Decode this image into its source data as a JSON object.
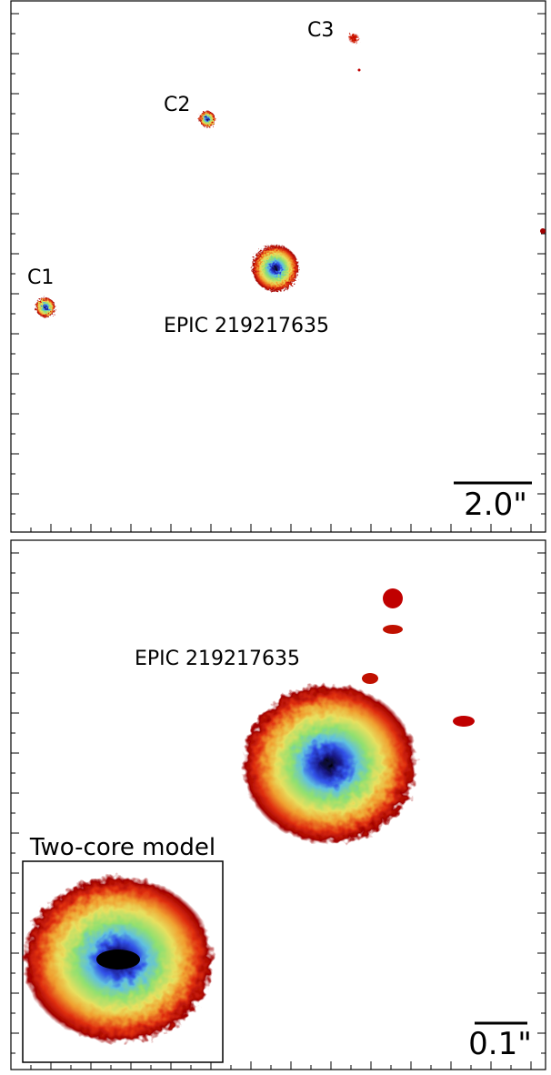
{
  "top_panel": {
    "labels": {
      "c1": "C1",
      "c2": "C2",
      "c3": "C3",
      "target": "EPIC 219217635"
    },
    "scale_bar": "2.0\""
  },
  "bottom_panel": {
    "target": "EPIC 219217635",
    "inset_title": "Two-core model",
    "scale_bar": "0.1\""
  }
}
